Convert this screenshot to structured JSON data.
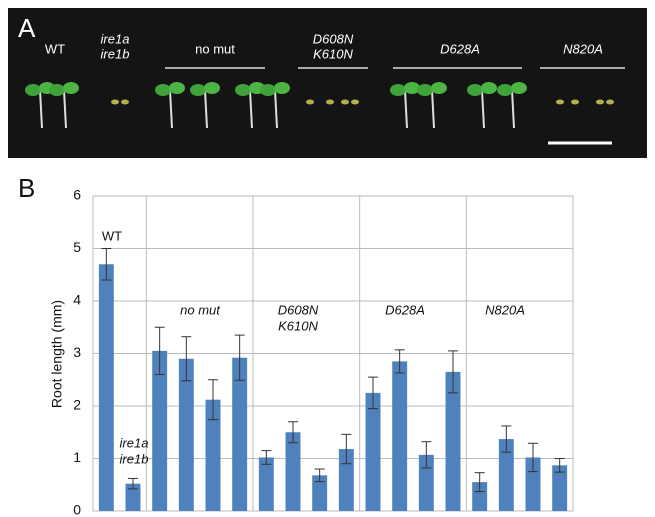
{
  "panel_a": {
    "label": "A",
    "groups": [
      [
        "WT"
      ],
      [
        "ire1a",
        "ire1b"
      ],
      [
        "no mut"
      ],
      [
        "D608N",
        "K610N"
      ],
      [
        "D628A"
      ],
      [
        "N820A"
      ]
    ]
  },
  "panel_b_label": "B",
  "chart_data": {
    "type": "bar",
    "y_label": "Root length (mm)",
    "categories": [
      null,
      null,
      null,
      null,
      null,
      null,
      null,
      null,
      null,
      null,
      null,
      null,
      null,
      null,
      null,
      null,
      null,
      null
    ],
    "values": [
      4.7,
      0.52,
      3.05,
      2.9,
      2.12,
      2.92,
      1.02,
      1.5,
      0.68,
      1.18,
      2.25,
      2.85,
      1.07,
      2.65,
      0.55,
      1.37,
      1.02,
      0.87
    ],
    "errors": [
      0.3,
      0.1,
      0.45,
      0.42,
      0.38,
      0.43,
      0.13,
      0.2,
      0.12,
      0.28,
      0.3,
      0.22,
      0.25,
      0.4,
      0.18,
      0.25,
      0.27,
      0.13
    ],
    "color": "#4f81bd",
    "ylim": [
      0,
      6
    ],
    "yticks": [
      0,
      1,
      2,
      3,
      4,
      5,
      6
    ],
    "grid": true,
    "annotations": [
      [
        "WT"
      ],
      [
        "ire1a",
        "ire1b"
      ],
      [
        "no mut"
      ],
      [
        "D608N",
        "K610N"
      ],
      [
        "D628A"
      ],
      [
        "N820A"
      ]
    ]
  }
}
